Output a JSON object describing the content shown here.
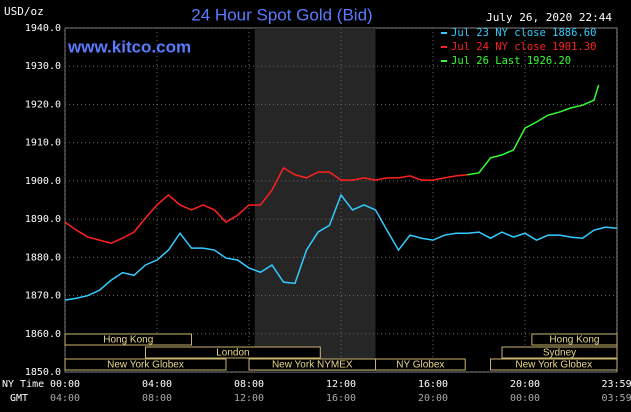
{
  "chart_data": {
    "type": "line",
    "title": "24 Hour Spot Gold (Bid)",
    "unit_label": "USD/oz",
    "timestamp": "July 26, 2020 22:44",
    "watermark": "www.kitco.com",
    "xlim": [
      0,
      24
    ],
    "ylim": [
      1850,
      1940
    ],
    "yticks": [
      {
        "value": 1850,
        "label": "1850.0"
      },
      {
        "value": 1860,
        "label": "1860.0"
      },
      {
        "value": 1870,
        "label": "1870.0"
      },
      {
        "value": 1880,
        "label": "1880.0"
      },
      {
        "value": 1890,
        "label": "1890.0"
      },
      {
        "value": 1900,
        "label": "1900.0"
      },
      {
        "value": 1910,
        "label": "1910.0"
      },
      {
        "value": 1920,
        "label": "1920.0"
      },
      {
        "value": 1930,
        "label": "1930.0"
      },
      {
        "value": 1940,
        "label": "1940.0"
      }
    ],
    "xticks": [
      {
        "value": 0,
        "label": "00:00"
      },
      {
        "value": 4,
        "label": "04:00"
      },
      {
        "value": 8,
        "label": "08:00"
      },
      {
        "value": 12,
        "label": "12:00"
      },
      {
        "value": 16,
        "label": "16:00"
      },
      {
        "value": 20,
        "label": "20:00"
      },
      {
        "value": 23.98,
        "label": "23:59"
      }
    ],
    "xtick_gmt_labels": [
      "04:00",
      "08:00",
      "12:00",
      "16:00",
      "20:00",
      "00:00",
      "03:59"
    ],
    "xaxis_label": "NY Time",
    "xaxis_gmt_label": "GMT",
    "grid": true,
    "shaded": [
      8.25,
      13.5
    ],
    "sessions": [
      [
        {
          "label": "Hong Kong",
          "start": 0,
          "end": 5.5
        },
        {
          "label": "Hong Kong",
          "start": 20.3,
          "end": 24
        }
      ],
      [
        {
          "label": "London",
          "start": 3.5,
          "end": 11.1
        },
        {
          "label": "Sydney",
          "start": 19,
          "end": 24
        }
      ],
      [
        {
          "label": "New York Globex",
          "start": 0,
          "end": 7
        },
        {
          "label": "New York NYMEX",
          "start": 8,
          "end": 13.5
        },
        {
          "label": "NY Globex",
          "start": 13.5,
          "end": 17.4
        },
        {
          "label": "New York Globex",
          "start": 18.5,
          "end": 24
        }
      ]
    ],
    "series": [
      {
        "name": "Jul 23 NY close 1886.60",
        "color": "#33ccff",
        "x": [
          0,
          0.5,
          1,
          1.5,
          2,
          2.5,
          3,
          3.5,
          4,
          4.5,
          5,
          5.5,
          6,
          6.5,
          7,
          7.5,
          8,
          8.5,
          9,
          9.5,
          10,
          10.5,
          11,
          11.5,
          12,
          12.5,
          13,
          13.5,
          14,
          14.5,
          15,
          15.5,
          16,
          16.5,
          17,
          17.5,
          18,
          18.5,
          19,
          19.5,
          20,
          20.5,
          21,
          21.5,
          22,
          22.5,
          23,
          23.5,
          24
        ],
        "values": [
          1868.8,
          1869.3,
          1870,
          1871.4,
          1874,
          1876,
          1875.3,
          1878,
          1879.3,
          1881.9,
          1886.3,
          1882.4,
          1882.4,
          1881.9,
          1879.8,
          1879.3,
          1877.2,
          1876.1,
          1878,
          1873.5,
          1873.2,
          1881.9,
          1886.6,
          1888.4,
          1896.3,
          1892.4,
          1893.7,
          1892.4,
          1887.1,
          1881.9,
          1885.8,
          1885,
          1884.5,
          1885.8,
          1886.3,
          1886.3,
          1886.6,
          1885,
          1886.6,
          1885.3,
          1886.3,
          1884.5,
          1885.8,
          1885.8,
          1885.3,
          1885,
          1887.1,
          1887.9,
          1887.6
        ]
      },
      {
        "name": "Jul 24 NY close 1901.30",
        "color": "#ff2020",
        "x": [
          0,
          0.5,
          1,
          1.5,
          2,
          2.5,
          3,
          3.5,
          4,
          4.5,
          5,
          5.5,
          6,
          6.5,
          7,
          7.5,
          8,
          8.5,
          9,
          9.5,
          10,
          10.5,
          11,
          11.5,
          12,
          12.5,
          13,
          13.5,
          14,
          14.5,
          15,
          15.5,
          16,
          16.5,
          17,
          17.5
        ],
        "values": [
          1889.2,
          1887.1,
          1885.3,
          1884.5,
          1883.7,
          1885,
          1886.6,
          1890.3,
          1893.7,
          1896.3,
          1893.7,
          1892.4,
          1893.7,
          1892.4,
          1889.2,
          1891,
          1893.7,
          1893.7,
          1897.6,
          1903.4,
          1901.6,
          1900.8,
          1902.3,
          1902.3,
          1900.2,
          1900.2,
          1900.8,
          1900.2,
          1900.8,
          1900.8,
          1901.3,
          1900.2,
          1900.2,
          1900.8,
          1901.3,
          1901.6
        ]
      },
      {
        "name": "Jul 26 Last 1926.20",
        "color": "#33ff33",
        "x": [
          17.5,
          18,
          18.5,
          19,
          19.5,
          20,
          20.5,
          21,
          21.5,
          22,
          22.5,
          23,
          23.2
        ],
        "values": [
          1901.6,
          1902.1,
          1906,
          1906.8,
          1908.1,
          1913.8,
          1915.4,
          1917.2,
          1918,
          1919.1,
          1919.8,
          1921.1,
          1925.1
        ]
      }
    ]
  }
}
